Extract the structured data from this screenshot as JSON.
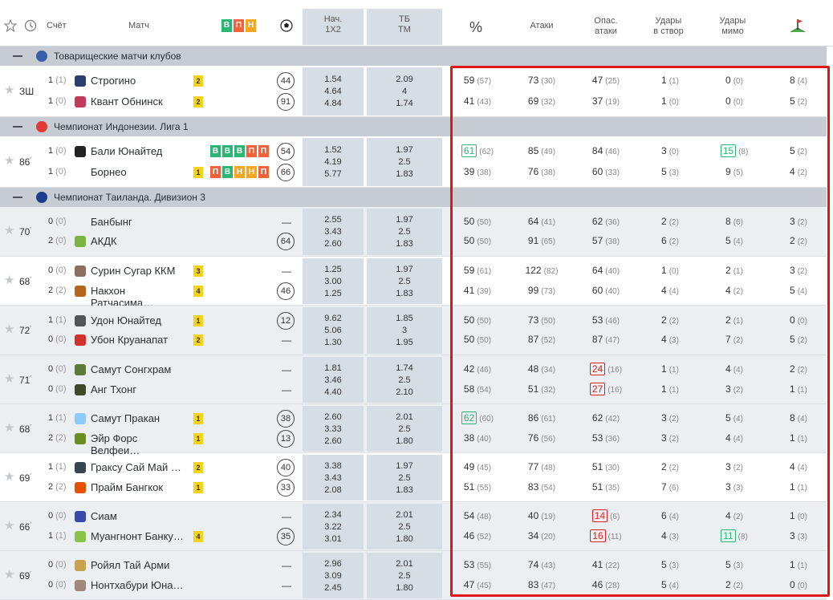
{
  "header": {
    "score": "Счёт",
    "match": "Матч",
    "form": [
      "В",
      "П",
      "Н"
    ],
    "odds1": "Нач.",
    "odds1b": "1Х2",
    "odds2": "ТБ",
    "odds2b": "ТМ",
    "pct": "%",
    "attacks": "Атаки",
    "dang1": "Опас.",
    "dang2": "атаки",
    "on1": "Удары",
    "on2": "в створ",
    "off1": "Удары",
    "off2": "мимо"
  },
  "sections": [
    {
      "title": "Товарищеские матчи клубов",
      "flag": "#3a5ea8"
    },
    {
      "title": "Чемпионат Индонезии. Лига 1",
      "flag": "#e53935"
    },
    {
      "title": "Чемпионат Таиланда. Дивизион 3",
      "flag": "#1e3c8c"
    }
  ],
  "matches": [
    {
      "time": "ЗШ",
      "t": [
        {
          "sc": "1",
          "ht": "(1)",
          "name": "Строгино",
          "logo": "#2c3e6b",
          "y": "2",
          "pos": "44",
          "o": "1.54",
          "tb": "2.09",
          "s": [
            [
              "59",
              "(57)"
            ],
            [
              "73",
              "(30)"
            ],
            [
              "47",
              "(25)"
            ],
            [
              "1",
              "(1)"
            ],
            [
              "0",
              "(0)"
            ],
            [
              "8",
              "(4)"
            ]
          ]
        },
        {
          "sc": "1",
          "ht": "(0)",
          "name": "Квант Обнинск",
          "logo": "#c23a5a",
          "y": "2",
          "pos": "91",
          "o": "4.64",
          "tb": "4",
          "s": [
            [
              "41",
              "(43)"
            ],
            [
              "69",
              "(32)"
            ],
            [
              "37",
              "(19)"
            ],
            [
              "1",
              "(0)"
            ],
            [
              "0",
              "(0)"
            ],
            [
              "5",
              "(2)"
            ]
          ]
        }
      ],
      "o3": "4.84",
      "tb3": "1.74"
    },
    {
      "time": "86",
      "t": [
        {
          "sc": "1",
          "ht": "(0)",
          "name": "Бали Юнайтед",
          "logo": "#222",
          "y": "",
          "form": [
            "В",
            "В",
            "В",
            "П",
            "П"
          ],
          "pos": "54",
          "o": "1.52",
          "tb": "1.97",
          "s": [
            [
              "61",
              "(62)"
            ],
            [
              "85",
              "(49)"
            ],
            [
              "84",
              "(46)"
            ],
            [
              "3",
              "(0)"
            ],
            [
              "15",
              "(8)"
            ],
            [
              "5",
              "(2)"
            ]
          ]
        },
        {
          "sc": "1",
          "ht": "(0)",
          "name": "Борнео",
          "logo": "",
          "y": "1",
          "form": [
            "П",
            "В",
            "Н",
            "Н",
            "П"
          ],
          "pos": "66",
          "o": "4.19",
          "tb": "2.5",
          "s": [
            [
              "39",
              "(38)"
            ],
            [
              "76",
              "(38)"
            ],
            [
              "60",
              "(33)"
            ],
            [
              "5",
              "(3)"
            ],
            [
              "9",
              "(5)"
            ],
            [
              "4",
              "(2)"
            ]
          ]
        }
      ],
      "o3": "5.77",
      "tb3": "1.83"
    },
    {
      "time": "70",
      "t": [
        {
          "sc": "0",
          "ht": "(0)",
          "name": "Банбынг",
          "logo": "",
          "y": "",
          "pos": "—",
          "o": "2.55",
          "tb": "1.97",
          "s": [
            [
              "50",
              "(50)"
            ],
            [
              "64",
              "(41)"
            ],
            [
              "62",
              "(36)"
            ],
            [
              "2",
              "(2)"
            ],
            [
              "8",
              "(6)"
            ],
            [
              "3",
              "(2)"
            ]
          ]
        },
        {
          "sc": "2",
          "ht": "(0)",
          "name": "АКДК",
          "logo": "#7cb342",
          "y": "",
          "pos": "64",
          "o": "3.43",
          "tb": "2.5",
          "s": [
            [
              "50",
              "(50)"
            ],
            [
              "91",
              "(65)"
            ],
            [
              "57",
              "(38)"
            ],
            [
              "6",
              "(2)"
            ],
            [
              "5",
              "(4)"
            ],
            [
              "2",
              "(2)"
            ]
          ]
        }
      ],
      "o3": "2.60",
      "tb3": "1.83"
    },
    {
      "time": "68",
      "t": [
        {
          "sc": "0",
          "ht": "(0)",
          "name": "Сурин Сугар ККМ",
          "logo": "#8d6e63",
          "y": "3",
          "pos": "—",
          "o": "1.25",
          "tb": "1.97",
          "s": [
            [
              "59",
              "(61)"
            ],
            [
              "122",
              "(82)"
            ],
            [
              "64",
              "(40)"
            ],
            [
              "1",
              "(0)"
            ],
            [
              "2",
              "(1)"
            ],
            [
              "3",
              "(2)"
            ]
          ]
        },
        {
          "sc": "2",
          "ht": "(2)",
          "name": "Накхон Ратчасима…",
          "logo": "#b5651d",
          "y": "4",
          "pos": "46",
          "o": "3.00",
          "tb": "2.5",
          "s": [
            [
              "41",
              "(39)"
            ],
            [
              "99",
              "(73)"
            ],
            [
              "60",
              "(40)"
            ],
            [
              "4",
              "(4)"
            ],
            [
              "4",
              "(2)"
            ],
            [
              "5",
              "(4)"
            ]
          ]
        }
      ],
      "o3": "1.25",
      "tb3": "1.83"
    },
    {
      "time": "72",
      "t": [
        {
          "sc": "1",
          "ht": "(1)",
          "name": "Удон Юнайтед",
          "logo": "#555",
          "y": "1",
          "pos": "12",
          "o": "9.62",
          "tb": "1.85",
          "s": [
            [
              "50",
              "(50)"
            ],
            [
              "73",
              "(50)"
            ],
            [
              "53",
              "(46)"
            ],
            [
              "2",
              "(2)"
            ],
            [
              "2",
              "(1)"
            ],
            [
              "0",
              "(0)"
            ]
          ]
        },
        {
          "sc": "0",
          "ht": "(0)",
          "name": "Убон Круанапат",
          "logo": "#d32f2f",
          "y": "2",
          "pos": "—",
          "o": "5.06",
          "tb": "3",
          "s": [
            [
              "50",
              "(50)"
            ],
            [
              "87",
              "(52)"
            ],
            [
              "87",
              "(47)"
            ],
            [
              "4",
              "(3)"
            ],
            [
              "7",
              "(2)"
            ],
            [
              "5",
              "(2)"
            ]
          ]
        }
      ],
      "o3": "1.30",
      "tb3": "1.95"
    },
    {
      "time": "71",
      "t": [
        {
          "sc": "0",
          "ht": "(0)",
          "name": "Самут Сонгхрам",
          "logo": "#5c7a3a",
          "y": "",
          "pos": "—",
          "o": "1.81",
          "tb": "1.74",
          "s": [
            [
              "42",
              "(46)"
            ],
            [
              "48",
              "(34)"
            ],
            [
              "24",
              "(16)"
            ],
            [
              "1",
              "(1)"
            ],
            [
              "4",
              "(4)"
            ],
            [
              "2",
              "(2)"
            ]
          ]
        },
        {
          "sc": "0",
          "ht": "(0)",
          "name": "Анг Тхонг",
          "logo": "#3e4a2a",
          "y": "",
          "pos": "—",
          "o": "3.46",
          "tb": "2.5",
          "s": [
            [
              "58",
              "(54)"
            ],
            [
              "51",
              "(32)"
            ],
            [
              "27",
              "(16)"
            ],
            [
              "1",
              "(1)"
            ],
            [
              "3",
              "(2)"
            ],
            [
              "1",
              "(1)"
            ]
          ]
        }
      ],
      "o3": "4.40",
      "tb3": "2.10"
    },
    {
      "time": "68",
      "t": [
        {
          "sc": "1",
          "ht": "(1)",
          "name": "Самут Пракан",
          "logo": "#90caf9",
          "y": "1",
          "pos": "38",
          "o": "2.60",
          "tb": "2.01",
          "s": [
            [
              "62",
              "(60)"
            ],
            [
              "86",
              "(61)"
            ],
            [
              "62",
              "(42)"
            ],
            [
              "3",
              "(2)"
            ],
            [
              "5",
              "(4)"
            ],
            [
              "8",
              "(4)"
            ]
          ]
        },
        {
          "sc": "2",
          "ht": "(2)",
          "name": "Эйр Форс Велфеи…",
          "logo": "#6b8e23",
          "y": "1",
          "pos": "13",
          "o": "3.33",
          "tb": "2.5",
          "s": [
            [
              "38",
              "(40)"
            ],
            [
              "76",
              "(56)"
            ],
            [
              "53",
              "(36)"
            ],
            [
              "3",
              "(2)"
            ],
            [
              "4",
              "(4)"
            ],
            [
              "1",
              "(1)"
            ]
          ]
        }
      ],
      "o3": "2.60",
      "tb3": "1.80"
    },
    {
      "time": "69",
      "t": [
        {
          "sc": "1",
          "ht": "(1)",
          "name": "Граксу Сай Май …",
          "logo": "#37474f",
          "y": "2",
          "pos": "40",
          "o": "3.38",
          "tb": "1.97",
          "s": [
            [
              "49",
              "(45)"
            ],
            [
              "77",
              "(48)"
            ],
            [
              "51",
              "(30)"
            ],
            [
              "2",
              "(2)"
            ],
            [
              "3",
              "(2)"
            ],
            [
              "4",
              "(4)"
            ]
          ]
        },
        {
          "sc": "2",
          "ht": "(2)",
          "name": "Прайм Бангкок",
          "logo": "#e65100",
          "y": "1",
          "pos": "33",
          "o": "3.43",
          "tb": "2.5",
          "s": [
            [
              "51",
              "(55)"
            ],
            [
              "83",
              "(54)"
            ],
            [
              "51",
              "(35)"
            ],
            [
              "7",
              "(6)"
            ],
            [
              "3",
              "(3)"
            ],
            [
              "1",
              "(1)"
            ]
          ]
        }
      ],
      "o3": "2.08",
      "tb3": "1.83"
    },
    {
      "time": "66",
      "t": [
        {
          "sc": "0",
          "ht": "(0)",
          "name": "Сиам",
          "logo": "#3949ab",
          "y": "",
          "pos": "—",
          "o": "2.34",
          "tb": "2.01",
          "s": [
            [
              "54",
              "(48)"
            ],
            [
              "40",
              "(19)"
            ],
            [
              "14",
              "(6)"
            ],
            [
              "6",
              "(4)"
            ],
            [
              "4",
              "(2)"
            ],
            [
              "1",
              "(0)"
            ]
          ]
        },
        {
          "sc": "1",
          "ht": "(1)",
          "name": "Муангнонт Банку…",
          "logo": "#8bc34a",
          "y": "4",
          "pos": "35",
          "o": "3.22",
          "tb": "2.5",
          "s": [
            [
              "46",
              "(52)"
            ],
            [
              "34",
              "(20)"
            ],
            [
              "16",
              "(11)"
            ],
            [
              "4",
              "(3)"
            ],
            [
              "11",
              "(8)"
            ],
            [
              "3",
              "(3)"
            ]
          ]
        }
      ],
      "o3": "3.01",
      "tb3": "1.80"
    },
    {
      "time": "69",
      "t": [
        {
          "sc": "0",
          "ht": "(0)",
          "name": "Ройял Тай Арми",
          "logo": "#c8a24a",
          "y": "",
          "pos": "—",
          "o": "2.96",
          "tb": "2.01",
          "s": [
            [
              "53",
              "(55)"
            ],
            [
              "74",
              "(43)"
            ],
            [
              "41",
              "(22)"
            ],
            [
              "5",
              "(3)"
            ],
            [
              "5",
              "(3)"
            ],
            [
              "1",
              "(1)"
            ]
          ]
        },
        {
          "sc": "0",
          "ht": "(0)",
          "name": "Нонтхабури Юна…",
          "logo": "#a1887f",
          "y": "",
          "pos": "—",
          "o": "3.09",
          "tb": "2.5",
          "s": [
            [
              "47",
              "(45)"
            ],
            [
              "83",
              "(47)"
            ],
            [
              "46",
              "(28)"
            ],
            [
              "5",
              "(4)"
            ],
            [
              "2",
              "(2)"
            ],
            [
              "0",
              "(0)"
            ]
          ]
        }
      ],
      "o3": "2.45",
      "tb3": "1.80"
    }
  ],
  "highlights": {
    "green": [
      "1.0.0",
      "1.0.4",
      "6.0.0",
      "8.1.4"
    ],
    "red": [
      "5.0.2",
      "5.1.2",
      "8.0.2",
      "8.1.2"
    ]
  }
}
